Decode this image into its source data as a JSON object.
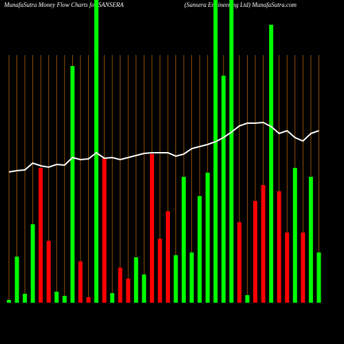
{
  "chart_data": {
    "type": "bar",
    "title": "MunafaSutra  Money Flow  Charts for SANSERA",
    "subtitle": "(Sansera  Engineering Ltd) MunafaSutra.com",
    "categories": [
      null,
      null,
      null,
      null,
      null,
      null,
      null,
      null,
      null,
      null,
      null,
      null,
      null,
      null,
      null,
      null,
      null,
      null,
      null,
      null,
      null,
      null,
      null,
      null,
      null,
      null,
      null,
      null,
      null,
      null,
      null,
      null,
      null,
      null,
      null,
      null,
      null,
      null,
      null,
      null
    ],
    "values": [
      4,
      67,
      13,
      114,
      196,
      90,
      16,
      10,
      344,
      60,
      8,
      440,
      210,
      14,
      51,
      35,
      66,
      41,
      216,
      93,
      133,
      69,
      183,
      73,
      155,
      189,
      440,
      330,
      440,
      117,
      11,
      148,
      171,
      404,
      162,
      102,
      196,
      102,
      183,
      73
    ],
    "colors": [
      "#00ff00",
      "#00ff00",
      "#00ff00",
      "#00ff00",
      "#ff0000",
      "#ff0000",
      "#00ff00",
      "#00ff00",
      "#00ff00",
      "#ff0000",
      "#ff0000",
      "#00ff00",
      "#ff0000",
      "#00ff00",
      "#ff0000",
      "#ff0000",
      "#00ff00",
      "#00ff00",
      "#ff0000",
      "#ff0000",
      "#ff0000",
      "#00ff00",
      "#00ff00",
      "#00ff00",
      "#00ff00",
      "#00ff00",
      "#00ff00",
      "#00ff00",
      "#00ff00",
      "#ff0000",
      "#00ff00",
      "#ff0000",
      "#ff0000",
      "#00ff00",
      "#ff0000",
      "#ff0000",
      "#00ff00",
      "#ff0000",
      "#00ff00",
      "#00ff00"
    ],
    "line": {
      "color": "#ffffff",
      "values": [
        190,
        192,
        193,
        203,
        199,
        197,
        201,
        200,
        211,
        208,
        209,
        218,
        210,
        211,
        208,
        211,
        214,
        217,
        218,
        218,
        218,
        213,
        216,
        224,
        227,
        230,
        234,
        240,
        248,
        257,
        261,
        261,
        262,
        256,
        246,
        250,
        240,
        235,
        246,
        250
      ]
    },
    "grid_color": "#b8640a",
    "ylim": [
      0,
      440
    ]
  }
}
